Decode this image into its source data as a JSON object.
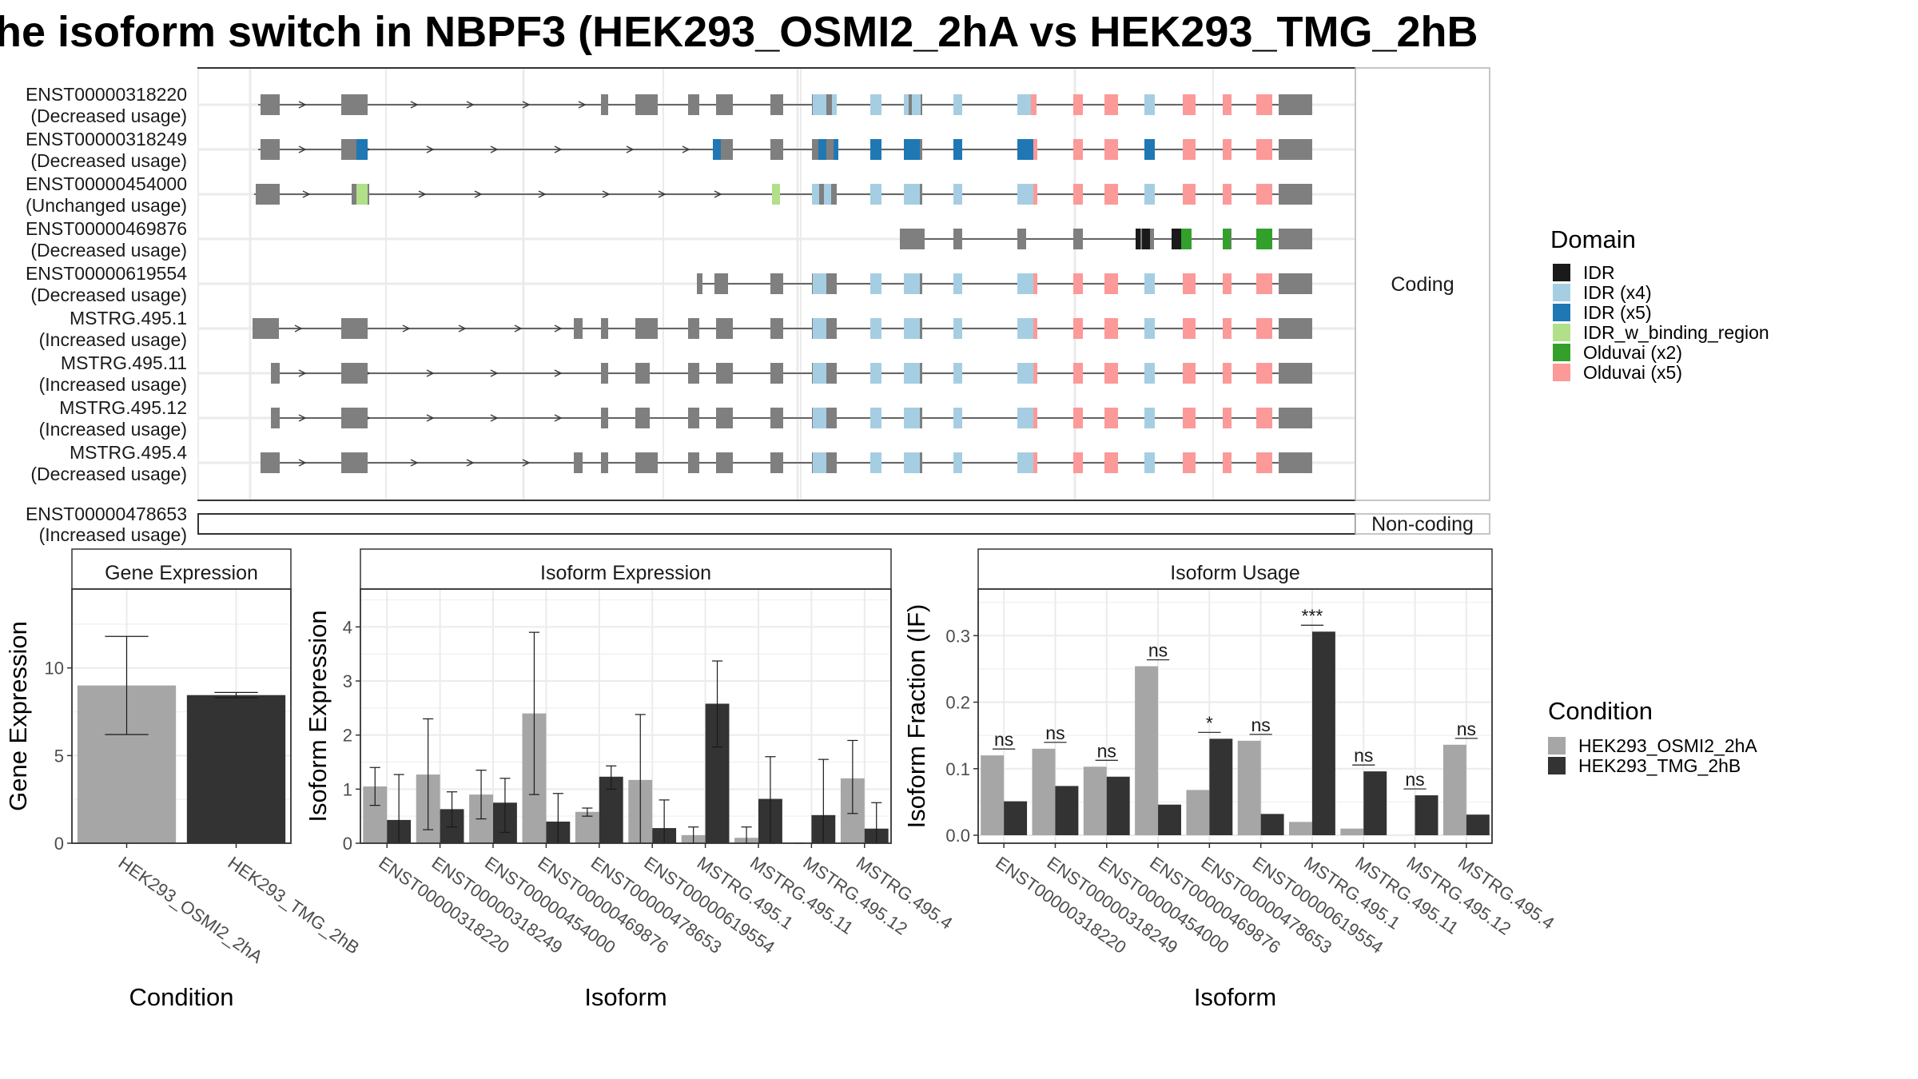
{
  "title": "he isoform switch in NBPF3 (HEK293_OSMI2_2hA vs HEK293_TMG_2hB",
  "colors": {
    "exon": "#7f7f7f",
    "intron": "#3a3a3a",
    "IDR": "#1a1a1a",
    "IDR (x4)": "#a6cee3",
    "IDR (x5)": "#1f78b4",
    "IDR_w_binding_region": "#b2df8a",
    "Olduvai (x2)": "#33a02c",
    "Olduvai (x5)": "#fb9a99",
    "condA": "#a6a6a6",
    "condB": "#333333"
  },
  "isoform_panel": {
    "strips": [
      "Coding",
      "Non-coding"
    ],
    "coding": [
      {
        "id": "ENST00000318220",
        "usage": "(Decreased usage)"
      },
      {
        "id": "ENST00000318249",
        "usage": "(Decreased usage)"
      },
      {
        "id": "ENST00000454000",
        "usage": "(Unchanged usage)"
      },
      {
        "id": "ENST00000469876",
        "usage": "(Decreased usage)"
      },
      {
        "id": "ENST00000619554",
        "usage": "(Decreased usage)"
      },
      {
        "id": "MSTRG.495.1",
        "usage": "(Increased usage)"
      },
      {
        "id": "MSTRG.495.11",
        "usage": "(Increased usage)"
      },
      {
        "id": "MSTRG.495.12",
        "usage": "(Increased usage)"
      },
      {
        "id": "MSTRG.495.4",
        "usage": "(Decreased usage)"
      }
    ],
    "noncoding": [
      {
        "id": "ENST00000478653",
        "usage": "(Increased usage)"
      }
    ]
  },
  "domain_legend": {
    "title": "Domain",
    "items": [
      "IDR",
      "IDR (x4)",
      "IDR (x5)",
      "IDR_w_binding_region",
      "Olduvai (x2)",
      "Olduvai (x5)"
    ]
  },
  "condition_legend": {
    "title": "Condition",
    "items": [
      "HEK293_OSMI2_2hA",
      "HEK293_TMG_2hB"
    ]
  },
  "chart_data": [
    {
      "type": "bar",
      "title": "Gene Expression",
      "xlabel": "Condition",
      "ylabel": "Gene Expression",
      "categories": [
        "HEK293_OSMI2_2hA",
        "HEK293_TMG_2hB"
      ],
      "values": [
        9.0,
        8.45
      ],
      "err_low": [
        6.2,
        8.3
      ],
      "err_high": [
        11.8,
        8.6
      ],
      "ylim": [
        0,
        14.5
      ],
      "yticks": [
        0,
        5,
        10
      ]
    },
    {
      "type": "bar",
      "title": "Isoform Expression",
      "xlabel": "Isoform",
      "ylabel": "Isoform Expression",
      "categories": [
        "ENST00000318220",
        "ENST00000318249",
        "ENST00000454000",
        "ENST00000469876",
        "ENST00000478653",
        "ENST00000619554",
        "MSTRG.495.1",
        "MSTRG.495.11",
        "MSTRG.495.12",
        "MSTRG.495.4"
      ],
      "series": [
        {
          "name": "HEK293_OSMI2_2hA",
          "values": [
            1.05,
            1.27,
            0.9,
            2.4,
            0.58,
            1.17,
            0.15,
            0.1,
            0.0,
            1.2
          ],
          "err_low": [
            0.7,
            0.25,
            0.45,
            0.9,
            0.5,
            0.0,
            0.0,
            0.0,
            0.0,
            0.55
          ],
          "err_high": [
            1.4,
            2.3,
            1.35,
            3.9,
            0.65,
            2.38,
            0.3,
            0.3,
            0.0,
            1.9
          ]
        },
        {
          "name": "HEK293_TMG_2hB",
          "values": [
            0.43,
            0.63,
            0.75,
            0.4,
            1.23,
            0.28,
            2.58,
            0.82,
            0.52,
            0.27
          ],
          "err_low": [
            0.0,
            0.3,
            0.2,
            0.0,
            1.0,
            0.0,
            1.78,
            0.0,
            0.0,
            0.0
          ],
          "err_high": [
            1.27,
            0.95,
            1.2,
            0.92,
            1.43,
            0.8,
            3.37,
            1.6,
            1.55,
            0.75
          ]
        }
      ],
      "ylim": [
        0,
        4.7
      ],
      "yticks": [
        0,
        1,
        2,
        3,
        4
      ]
    },
    {
      "type": "bar",
      "title": "Isoform Usage",
      "xlabel": "Isoform",
      "ylabel": "Isoform Fraction (IF)",
      "categories": [
        "ENST00000318220",
        "ENST00000318249",
        "ENST00000454000",
        "ENST00000469876",
        "ENST00000478653",
        "ENST00000619554",
        "MSTRG.495.1",
        "MSTRG.495.11",
        "MSTRG.495.12",
        "MSTRG.495.4"
      ],
      "series": [
        {
          "name": "HEK293_OSMI2_2hA",
          "values": [
            0.12,
            0.13,
            0.103,
            0.254,
            0.068,
            0.142,
            0.02,
            0.01,
            0.0,
            0.136
          ]
        },
        {
          "name": "HEK293_TMG_2hB",
          "values": [
            0.051,
            0.074,
            0.088,
            0.046,
            0.145,
            0.032,
            0.306,
            0.096,
            0.06,
            0.031
          ]
        }
      ],
      "significance": [
        "ns",
        "ns",
        "ns",
        "ns",
        "*",
        "ns",
        "***",
        "ns",
        "ns",
        "ns"
      ],
      "ylim": [
        -0.012,
        0.37
      ],
      "yticks": [
        0.0,
        0.1,
        0.2,
        0.3
      ]
    }
  ]
}
